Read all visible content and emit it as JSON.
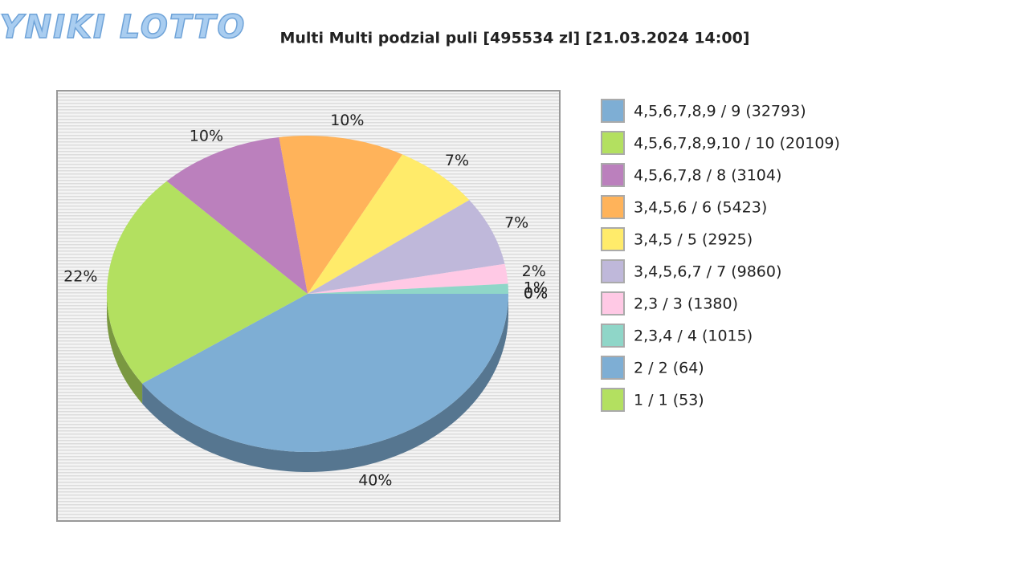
{
  "logo": "WYNIKI LOTTO",
  "chart_data": {
    "type": "pie",
    "title": "Multi Multi podzial puli [495534 zl] [21.03.2024 14:00]",
    "categories": [
      "4,5,6,7,8,9 / 9 (32793)",
      "4,5,6,7,8,9,10 / 10 (20109)",
      "4,5,6,7,8 / 8 (3104)",
      "3,4,5,6 / 6 (5423)",
      "3,4,5 / 5 (2925)",
      "3,4,5,6,7 / 7 (9860)",
      "2,3 / 3 (1380)",
      "2,3,4 / 4 (1015)",
      "2 / 2 (64)",
      "1 / 1 (53)"
    ],
    "values": [
      40,
      22,
      10,
      10,
      7,
      7,
      2,
      1,
      0,
      0
    ],
    "value_labels": [
      "40%",
      "22%",
      "10%",
      "10%",
      "7%",
      "7%",
      "2%",
      "1%",
      "0%",
      "0%"
    ],
    "colors": [
      "#7eaed4",
      "#b3e060",
      "#bb80bd",
      "#ffb35a",
      "#ffeb6a",
      "#bfb8da",
      "#ffc9e5",
      "#8fd6c8",
      "#7eaed4",
      "#b3e060"
    ],
    "legend": "right"
  }
}
